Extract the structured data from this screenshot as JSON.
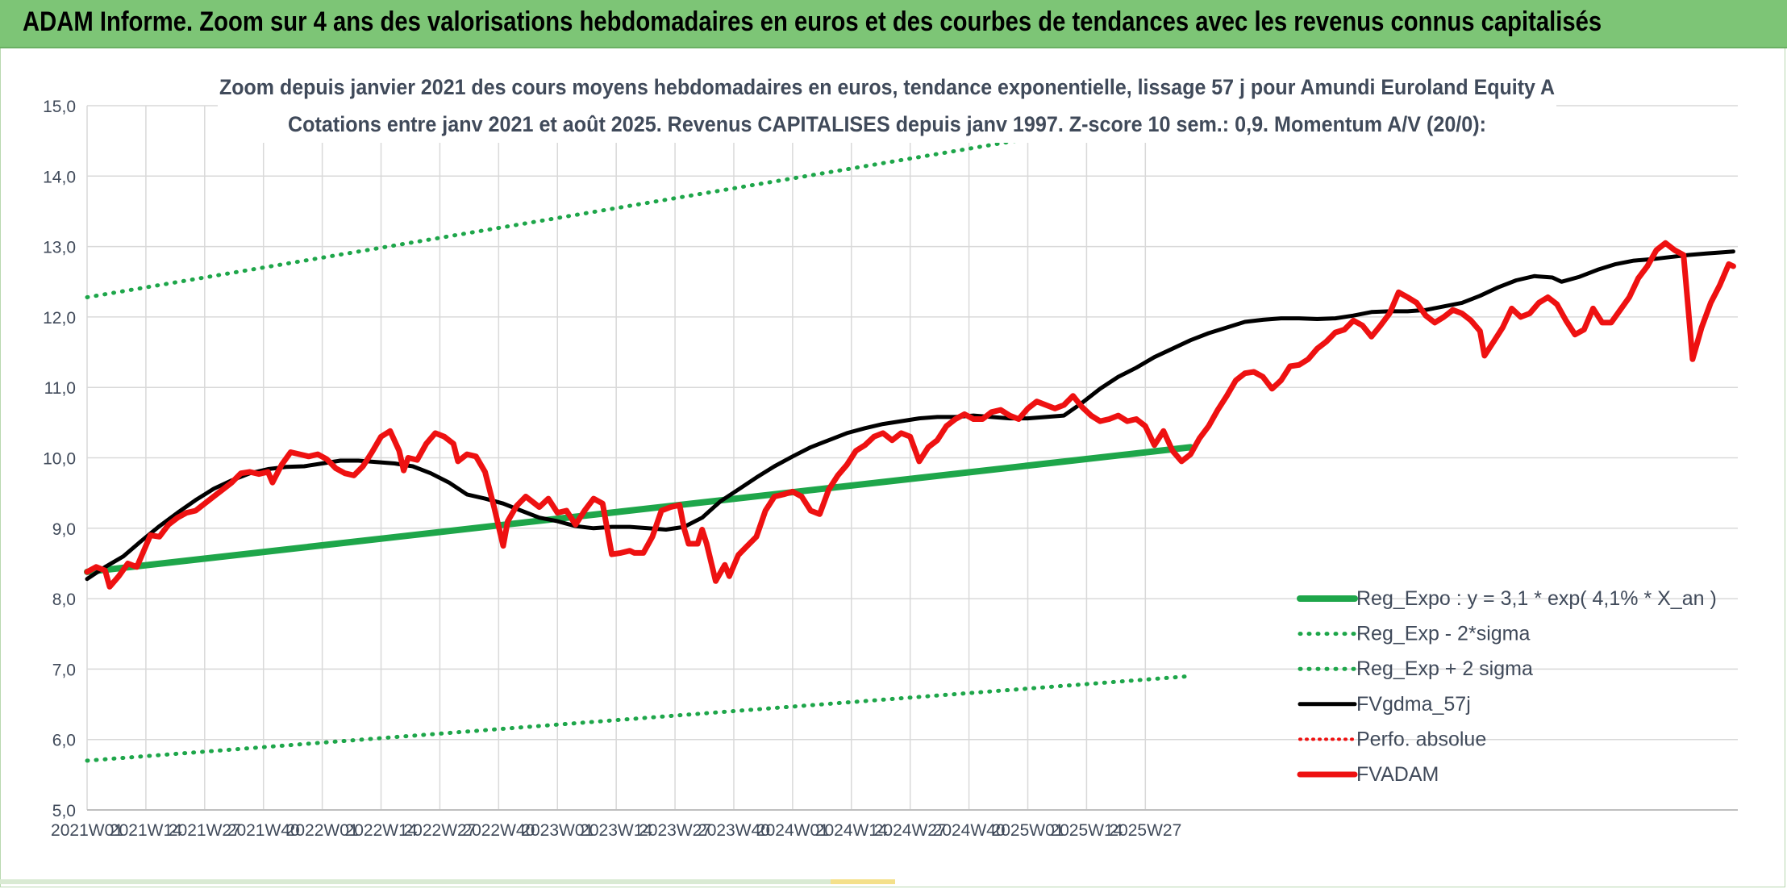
{
  "banner": {
    "title": "ADAM Informe. Zoom sur 4 ans des valorisations hebdomadaires en euros et des courbes de tendances avec les revenus connus capitalisés"
  },
  "colors": {
    "banner_bg": "#7dc576",
    "reg_green": "#1ea64a",
    "fvadam_red": "#ee1111",
    "fvgdma_black": "#000000",
    "grid": "#d9d9d9"
  },
  "chart_data": {
    "type": "line",
    "title": "Zoom depuis janvier 2021 des cours moyens hebdomadaires en euros, tendance exponentielle, lissage 57 j pour Amundi Euroland Equity A",
    "subtitle": "Cotations entre janv 2021 et août 2025. Revenus CAPITALISES depuis janv 1997. Z-score 10 sem.: 0,9. Momentum A/V (20/0):",
    "xlabel": "",
    "ylabel": "",
    "ylim": [
      5.0,
      15.0
    ],
    "yticks": [
      "5,0",
      "6,0",
      "7,0",
      "8,0",
      "9,0",
      "10,0",
      "11,0",
      "12,0",
      "13,0",
      "14,0",
      "15,0"
    ],
    "xticks": [
      "2021W01",
      "2021W14",
      "2021W27",
      "2021W40",
      "2022W01",
      "2022W14",
      "2022W27",
      "2022W40",
      "2023W01",
      "2023W14",
      "2023W27",
      "2023W40",
      "2024W01",
      "2024W14",
      "2024W27",
      "2024W40",
      "2025W01",
      "2025W14",
      "2025W27"
    ],
    "grid": true,
    "legend_position": "bottom-right",
    "legend": [
      {
        "label": "Reg_Expo : y = 3,1 * exp( 4,1% *  X_an )",
        "style": "solid-green"
      },
      {
        "label": "Reg_Exp - 2*sigma",
        "style": "dotted-green"
      },
      {
        "label": "Reg_Exp + 2 sigma",
        "style": "dotted-green"
      },
      {
        "label": "FVgdma_57j",
        "style": "solid-black"
      },
      {
        "label": "Perfo. absolue",
        "style": "dotted-red"
      },
      {
        "label": "FVADAM",
        "style": "solid-red"
      }
    ],
    "series": [
      {
        "name": "Reg_Expo : y = 3,1 * exp( 4,1% *  X_an )",
        "points": [
          [
            0,
            8.38
          ],
          [
            244,
            10.15
          ]
        ]
      },
      {
        "name": "Reg_Exp - 2*sigma",
        "points": [
          [
            0,
            5.7
          ],
          [
            244,
            6.9
          ]
        ]
      },
      {
        "name": "Reg_Exp + 2 sigma",
        "points": [
          [
            0,
            12.28
          ],
          [
            244,
            14.92
          ]
        ]
      },
      {
        "name": "FVgdma_57j",
        "points": [
          [
            0,
            8.28
          ],
          [
            4,
            8.45
          ],
          [
            8,
            8.6
          ],
          [
            12,
            8.82
          ],
          [
            16,
            9.03
          ],
          [
            20,
            9.22
          ],
          [
            24,
            9.4
          ],
          [
            28,
            9.56
          ],
          [
            32,
            9.68
          ],
          [
            36,
            9.78
          ],
          [
            40,
            9.84
          ],
          [
            44,
            9.87
          ],
          [
            48,
            9.88
          ],
          [
            52,
            9.92
          ],
          [
            56,
            9.96
          ],
          [
            60,
            9.96
          ],
          [
            64,
            9.94
          ],
          [
            68,
            9.92
          ],
          [
            72,
            9.88
          ],
          [
            76,
            9.78
          ],
          [
            80,
            9.65
          ],
          [
            84,
            9.48
          ],
          [
            88,
            9.42
          ],
          [
            92,
            9.35
          ],
          [
            96,
            9.25
          ],
          [
            100,
            9.15
          ],
          [
            104,
            9.1
          ],
          [
            108,
            9.03
          ],
          [
            112,
            9.0
          ],
          [
            116,
            9.02
          ],
          [
            120,
            9.02
          ],
          [
            124,
            9.0
          ],
          [
            128,
            8.98
          ],
          [
            132,
            9.02
          ],
          [
            136,
            9.15
          ],
          [
            140,
            9.38
          ],
          [
            144,
            9.55
          ],
          [
            148,
            9.72
          ],
          [
            152,
            9.88
          ],
          [
            156,
            10.02
          ],
          [
            160,
            10.15
          ],
          [
            164,
            10.25
          ],
          [
            168,
            10.35
          ],
          [
            172,
            10.42
          ],
          [
            176,
            10.48
          ],
          [
            180,
            10.52
          ],
          [
            184,
            10.56
          ],
          [
            188,
            10.58
          ],
          [
            192,
            10.58
          ],
          [
            196,
            10.6
          ],
          [
            200,
            10.58
          ],
          [
            204,
            10.56
          ],
          [
            208,
            10.56
          ],
          [
            212,
            10.58
          ],
          [
            216,
            10.6
          ],
          [
            220,
            10.78
          ],
          [
            224,
            10.98
          ],
          [
            228,
            11.15
          ],
          [
            232,
            11.28
          ],
          [
            236,
            11.43
          ],
          [
            240,
            11.55
          ],
          [
            244,
            11.67
          ],
          [
            248,
            11.77
          ],
          [
            252,
            11.85
          ],
          [
            256,
            11.93
          ],
          [
            260,
            11.96
          ],
          [
            264,
            11.98
          ],
          [
            268,
            11.98
          ],
          [
            272,
            11.97
          ],
          [
            276,
            11.98
          ],
          [
            280,
            12.02
          ],
          [
            284,
            12.07
          ],
          [
            288,
            12.08
          ],
          [
            292,
            12.08
          ],
          [
            296,
            12.1
          ],
          [
            300,
            12.15
          ],
          [
            304,
            12.2
          ],
          [
            308,
            12.3
          ],
          [
            312,
            12.42
          ],
          [
            316,
            12.52
          ],
          [
            320,
            12.58
          ],
          [
            324,
            12.56
          ],
          [
            326,
            12.5
          ],
          [
            330,
            12.57
          ],
          [
            334,
            12.67
          ],
          [
            338,
            12.75
          ],
          [
            342,
            12.8
          ],
          [
            346,
            12.82
          ],
          [
            350,
            12.85
          ],
          [
            354,
            12.88
          ],
          [
            358,
            12.9
          ],
          [
            362,
            12.92
          ],
          [
            364,
            12.93
          ]
        ]
      },
      {
        "name": "FVADAM",
        "points": [
          [
            0,
            8.38
          ],
          [
            2,
            8.45
          ],
          [
            4,
            8.4
          ],
          [
            5,
            8.17
          ],
          [
            7,
            8.32
          ],
          [
            9,
            8.5
          ],
          [
            11,
            8.45
          ],
          [
            12,
            8.6
          ],
          [
            14,
            8.9
          ],
          [
            16,
            8.88
          ],
          [
            18,
            9.05
          ],
          [
            20,
            9.15
          ],
          [
            22,
            9.22
          ],
          [
            24,
            9.25
          ],
          [
            26,
            9.35
          ],
          [
            28,
            9.45
          ],
          [
            30,
            9.55
          ],
          [
            32,
            9.65
          ],
          [
            34,
            9.78
          ],
          [
            36,
            9.8
          ],
          [
            38,
            9.77
          ],
          [
            40,
            9.8
          ],
          [
            41,
            9.65
          ],
          [
            43,
            9.9
          ],
          [
            45,
            10.08
          ],
          [
            47,
            10.05
          ],
          [
            49,
            10.02
          ],
          [
            51,
            10.05
          ],
          [
            53,
            9.98
          ],
          [
            55,
            9.85
          ],
          [
            57,
            9.78
          ],
          [
            59,
            9.75
          ],
          [
            61,
            9.88
          ],
          [
            63,
            10.08
          ],
          [
            65,
            10.3
          ],
          [
            67,
            10.38
          ],
          [
            69,
            10.1
          ],
          [
            70,
            9.82
          ],
          [
            71,
            10.0
          ],
          [
            73,
            9.97
          ],
          [
            75,
            10.2
          ],
          [
            77,
            10.35
          ],
          [
            79,
            10.3
          ],
          [
            81,
            10.2
          ],
          [
            82,
            9.95
          ],
          [
            84,
            10.05
          ],
          [
            86,
            10.02
          ],
          [
            88,
            9.8
          ],
          [
            90,
            9.3
          ],
          [
            92,
            8.75
          ],
          [
            93,
            9.1
          ],
          [
            95,
            9.32
          ],
          [
            97,
            9.45
          ],
          [
            99,
            9.35
          ],
          [
            100,
            9.3
          ],
          [
            102,
            9.42
          ],
          [
            104,
            9.22
          ],
          [
            106,
            9.25
          ],
          [
            108,
            9.05
          ],
          [
            110,
            9.25
          ],
          [
            112,
            9.42
          ],
          [
            114,
            9.35
          ],
          [
            116,
            8.63
          ],
          [
            118,
            8.65
          ],
          [
            120,
            8.68
          ],
          [
            121,
            8.65
          ],
          [
            123,
            8.65
          ],
          [
            125,
            8.88
          ],
          [
            127,
            9.25
          ],
          [
            129,
            9.3
          ],
          [
            131,
            9.33
          ],
          [
            132,
            9.0
          ],
          [
            133,
            8.78
          ],
          [
            135,
            8.78
          ],
          [
            136,
            8.98
          ],
          [
            137,
            8.78
          ],
          [
            139,
            8.25
          ],
          [
            141,
            8.48
          ],
          [
            142,
            8.32
          ],
          [
            144,
            8.62
          ],
          [
            146,
            8.75
          ],
          [
            148,
            8.88
          ],
          [
            150,
            9.25
          ],
          [
            152,
            9.45
          ],
          [
            154,
            9.48
          ],
          [
            156,
            9.52
          ],
          [
            158,
            9.45
          ],
          [
            160,
            9.25
          ],
          [
            162,
            9.2
          ],
          [
            164,
            9.55
          ],
          [
            166,
            9.75
          ],
          [
            168,
            9.9
          ],
          [
            170,
            10.1
          ],
          [
            172,
            10.18
          ],
          [
            174,
            10.3
          ],
          [
            176,
            10.35
          ],
          [
            178,
            10.25
          ],
          [
            180,
            10.35
          ],
          [
            182,
            10.3
          ],
          [
            184,
            9.95
          ],
          [
            186,
            10.15
          ],
          [
            188,
            10.25
          ],
          [
            190,
            10.45
          ],
          [
            192,
            10.55
          ],
          [
            194,
            10.62
          ],
          [
            196,
            10.55
          ],
          [
            198,
            10.55
          ],
          [
            200,
            10.65
          ],
          [
            202,
            10.68
          ],
          [
            204,
            10.6
          ],
          [
            206,
            10.55
          ],
          [
            208,
            10.7
          ],
          [
            210,
            10.8
          ],
          [
            212,
            10.75
          ],
          [
            214,
            10.7
          ],
          [
            216,
            10.75
          ],
          [
            218,
            10.88
          ],
          [
            220,
            10.72
          ],
          [
            222,
            10.6
          ],
          [
            224,
            10.52
          ],
          [
            226,
            10.55
          ],
          [
            228,
            10.6
          ],
          [
            230,
            10.52
          ],
          [
            232,
            10.55
          ],
          [
            234,
            10.45
          ],
          [
            236,
            10.18
          ],
          [
            238,
            10.38
          ],
          [
            240,
            10.1
          ],
          [
            242,
            9.95
          ],
          [
            244,
            10.05
          ],
          [
            246,
            10.28
          ],
          [
            248,
            10.45
          ],
          [
            250,
            10.68
          ],
          [
            252,
            10.88
          ],
          [
            254,
            11.1
          ],
          [
            256,
            11.2
          ],
          [
            258,
            11.22
          ],
          [
            260,
            11.15
          ],
          [
            262,
            10.98
          ],
          [
            264,
            11.1
          ],
          [
            266,
            11.3
          ],
          [
            268,
            11.32
          ],
          [
            270,
            11.4
          ],
          [
            272,
            11.55
          ],
          [
            274,
            11.65
          ],
          [
            276,
            11.78
          ],
          [
            278,
            11.82
          ],
          [
            280,
            11.95
          ],
          [
            282,
            11.88
          ],
          [
            284,
            11.72
          ],
          [
            286,
            11.88
          ],
          [
            288,
            12.05
          ],
          [
            290,
            12.35
          ],
          [
            292,
            12.28
          ],
          [
            294,
            12.2
          ],
          [
            296,
            12.02
          ],
          [
            298,
            11.92
          ],
          [
            300,
            12.0
          ],
          [
            302,
            12.1
          ],
          [
            304,
            12.05
          ],
          [
            306,
            11.95
          ],
          [
            308,
            11.8
          ],
          [
            309,
            11.45
          ],
          [
            311,
            11.65
          ],
          [
            313,
            11.85
          ],
          [
            315,
            12.12
          ],
          [
            317,
            12.0
          ],
          [
            319,
            12.05
          ],
          [
            321,
            12.2
          ],
          [
            323,
            12.28
          ],
          [
            325,
            12.18
          ],
          [
            327,
            11.95
          ],
          [
            329,
            11.75
          ],
          [
            331,
            11.82
          ],
          [
            333,
            12.12
          ],
          [
            335,
            11.92
          ],
          [
            337,
            11.92
          ],
          [
            339,
            12.1
          ],
          [
            341,
            12.28
          ],
          [
            343,
            12.55
          ],
          [
            345,
            12.72
          ],
          [
            347,
            12.95
          ],
          [
            349,
            13.05
          ],
          [
            351,
            12.95
          ],
          [
            353,
            12.88
          ],
          [
            354,
            12.15
          ],
          [
            355,
            11.4
          ],
          [
            357,
            11.85
          ],
          [
            359,
            12.2
          ],
          [
            361,
            12.45
          ],
          [
            363,
            12.75
          ],
          [
            364,
            12.72
          ]
        ]
      }
    ]
  }
}
